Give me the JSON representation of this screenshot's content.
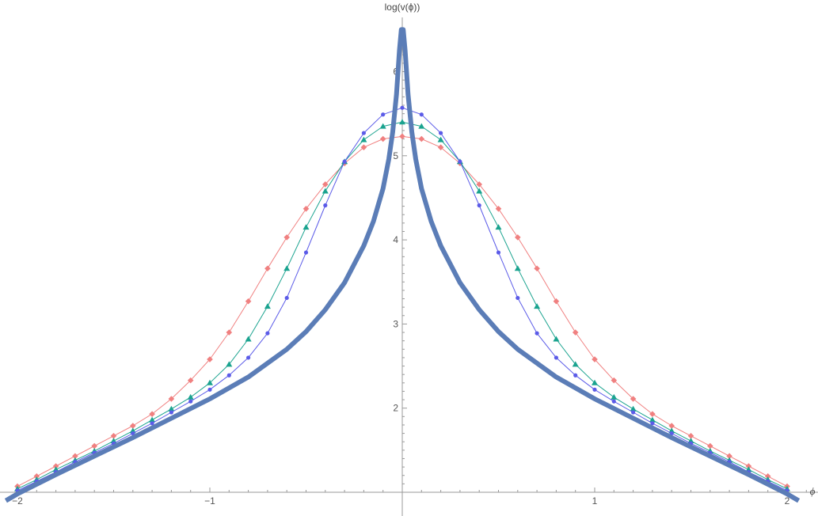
{
  "chart_data": {
    "type": "line",
    "xlabel": "ϕ",
    "ylabel": "log(v(ϕ))",
    "xlim": [
      -2.08,
      2.12
    ],
    "ylim": [
      0.9,
      6.5
    ],
    "x_ticks": [
      {
        "value": -2,
        "label": "−2"
      },
      {
        "value": -1,
        "label": "−1"
      },
      {
        "value": 1,
        "label": "1"
      },
      {
        "value": 2,
        "label": "2"
      }
    ],
    "y_ticks": [
      {
        "value": 2,
        "label": "2"
      },
      {
        "value": 3,
        "label": "3"
      },
      {
        "value": 4,
        "label": "4"
      },
      {
        "value": 5,
        "label": "5"
      },
      {
        "value": 6,
        "label": "6"
      }
    ],
    "series": [
      {
        "color": "#f08080",
        "marker": "diamond",
        "x": [
          -2.0,
          -1.9,
          -1.8,
          -1.7,
          -1.6,
          -1.5,
          -1.4,
          -1.3,
          -1.2,
          -1.1,
          -1.0,
          -0.9,
          -0.8,
          -0.7,
          -0.6,
          -0.5,
          -0.4,
          -0.3,
          -0.2,
          -0.1,
          0.0,
          0.1,
          0.2,
          0.3,
          0.4,
          0.5,
          0.6,
          0.7,
          0.8,
          0.9,
          1.0,
          1.1,
          1.2,
          1.3,
          1.4,
          1.5,
          1.6,
          1.7,
          1.8,
          1.9,
          2.0
        ],
        "y": [
          1.07,
          1.19,
          1.31,
          1.43,
          1.55,
          1.67,
          1.79,
          1.93,
          2.11,
          2.33,
          2.58,
          2.9,
          3.27,
          3.66,
          4.03,
          4.37,
          4.66,
          4.91,
          5.1,
          5.2,
          5.23,
          5.2,
          5.1,
          4.91,
          4.66,
          4.37,
          4.03,
          3.66,
          3.27,
          2.9,
          2.58,
          2.33,
          2.11,
          1.93,
          1.79,
          1.67,
          1.55,
          1.43,
          1.31,
          1.19,
          1.07
        ]
      },
      {
        "color": "#1aa38f",
        "marker": "triangle",
        "x": [
          -2.0,
          -1.9,
          -1.8,
          -1.7,
          -1.6,
          -1.5,
          -1.4,
          -1.3,
          -1.2,
          -1.1,
          -1.0,
          -0.9,
          -0.8,
          -0.7,
          -0.6,
          -0.5,
          -0.4,
          -0.3,
          -0.2,
          -0.1,
          0.0,
          0.1,
          0.2,
          0.3,
          0.4,
          0.5,
          0.6,
          0.7,
          0.8,
          0.9,
          1.0,
          1.1,
          1.2,
          1.3,
          1.4,
          1.5,
          1.6,
          1.7,
          1.8,
          1.9,
          2.0
        ],
        "y": [
          1.04,
          1.15,
          1.27,
          1.38,
          1.49,
          1.61,
          1.73,
          1.86,
          1.99,
          2.13,
          2.3,
          2.52,
          2.82,
          3.21,
          3.66,
          4.15,
          4.58,
          4.93,
          5.19,
          5.35,
          5.4,
          5.35,
          5.19,
          4.93,
          4.58,
          4.15,
          3.66,
          3.21,
          2.82,
          2.52,
          2.3,
          2.13,
          1.99,
          1.86,
          1.73,
          1.61,
          1.49,
          1.38,
          1.27,
          1.15,
          1.04
        ]
      },
      {
        "color": "#5b5be8",
        "marker": "circle",
        "x": [
          -2.0,
          -1.9,
          -1.8,
          -1.7,
          -1.6,
          -1.5,
          -1.4,
          -1.3,
          -1.2,
          -1.1,
          -1.0,
          -0.9,
          -0.8,
          -0.7,
          -0.6,
          -0.5,
          -0.4,
          -0.3,
          -0.2,
          -0.1,
          0.0,
          0.1,
          0.2,
          0.3,
          0.4,
          0.5,
          0.6,
          0.7,
          0.8,
          0.9,
          1.0,
          1.1,
          1.2,
          1.3,
          1.4,
          1.5,
          1.6,
          1.7,
          1.8,
          1.9,
          2.0
        ],
        "y": [
          1.02,
          1.13,
          1.24,
          1.36,
          1.47,
          1.58,
          1.7,
          1.82,
          1.95,
          2.08,
          2.22,
          2.39,
          2.6,
          2.89,
          3.31,
          3.85,
          4.41,
          4.93,
          5.27,
          5.49,
          5.57,
          5.49,
          5.27,
          4.93,
          4.41,
          3.85,
          3.31,
          2.89,
          2.6,
          2.39,
          2.22,
          2.08,
          1.95,
          1.82,
          1.7,
          1.58,
          1.47,
          1.36,
          1.24,
          1.13,
          1.02
        ]
      },
      {
        "color": "#5b7db7",
        "marker": "none",
        "x": [
          -2.06,
          -2.0,
          -1.8,
          -1.6,
          -1.4,
          -1.2,
          -1.0,
          -0.8,
          -0.6,
          -0.5,
          -0.4,
          -0.3,
          -0.2,
          -0.15,
          -0.1,
          -0.07,
          -0.05,
          -0.03,
          -0.015,
          -0.005,
          0.005,
          0.015,
          0.03,
          0.05,
          0.07,
          0.1,
          0.15,
          0.2,
          0.3,
          0.4,
          0.5,
          0.6,
          0.8,
          1.0,
          1.2,
          1.4,
          1.6,
          1.8,
          2.0,
          2.06
        ],
        "y": [
          0.9,
          0.98,
          1.21,
          1.43,
          1.65,
          1.88,
          2.11,
          2.37,
          2.7,
          2.91,
          3.17,
          3.49,
          3.93,
          4.22,
          4.61,
          4.96,
          5.28,
          5.73,
          6.25,
          6.5,
          6.5,
          6.25,
          5.73,
          5.28,
          4.96,
          4.61,
          4.22,
          3.93,
          3.49,
          3.17,
          2.91,
          2.7,
          2.37,
          2.11,
          1.88,
          1.65,
          1.43,
          1.21,
          0.98,
          0.9
        ]
      }
    ]
  }
}
